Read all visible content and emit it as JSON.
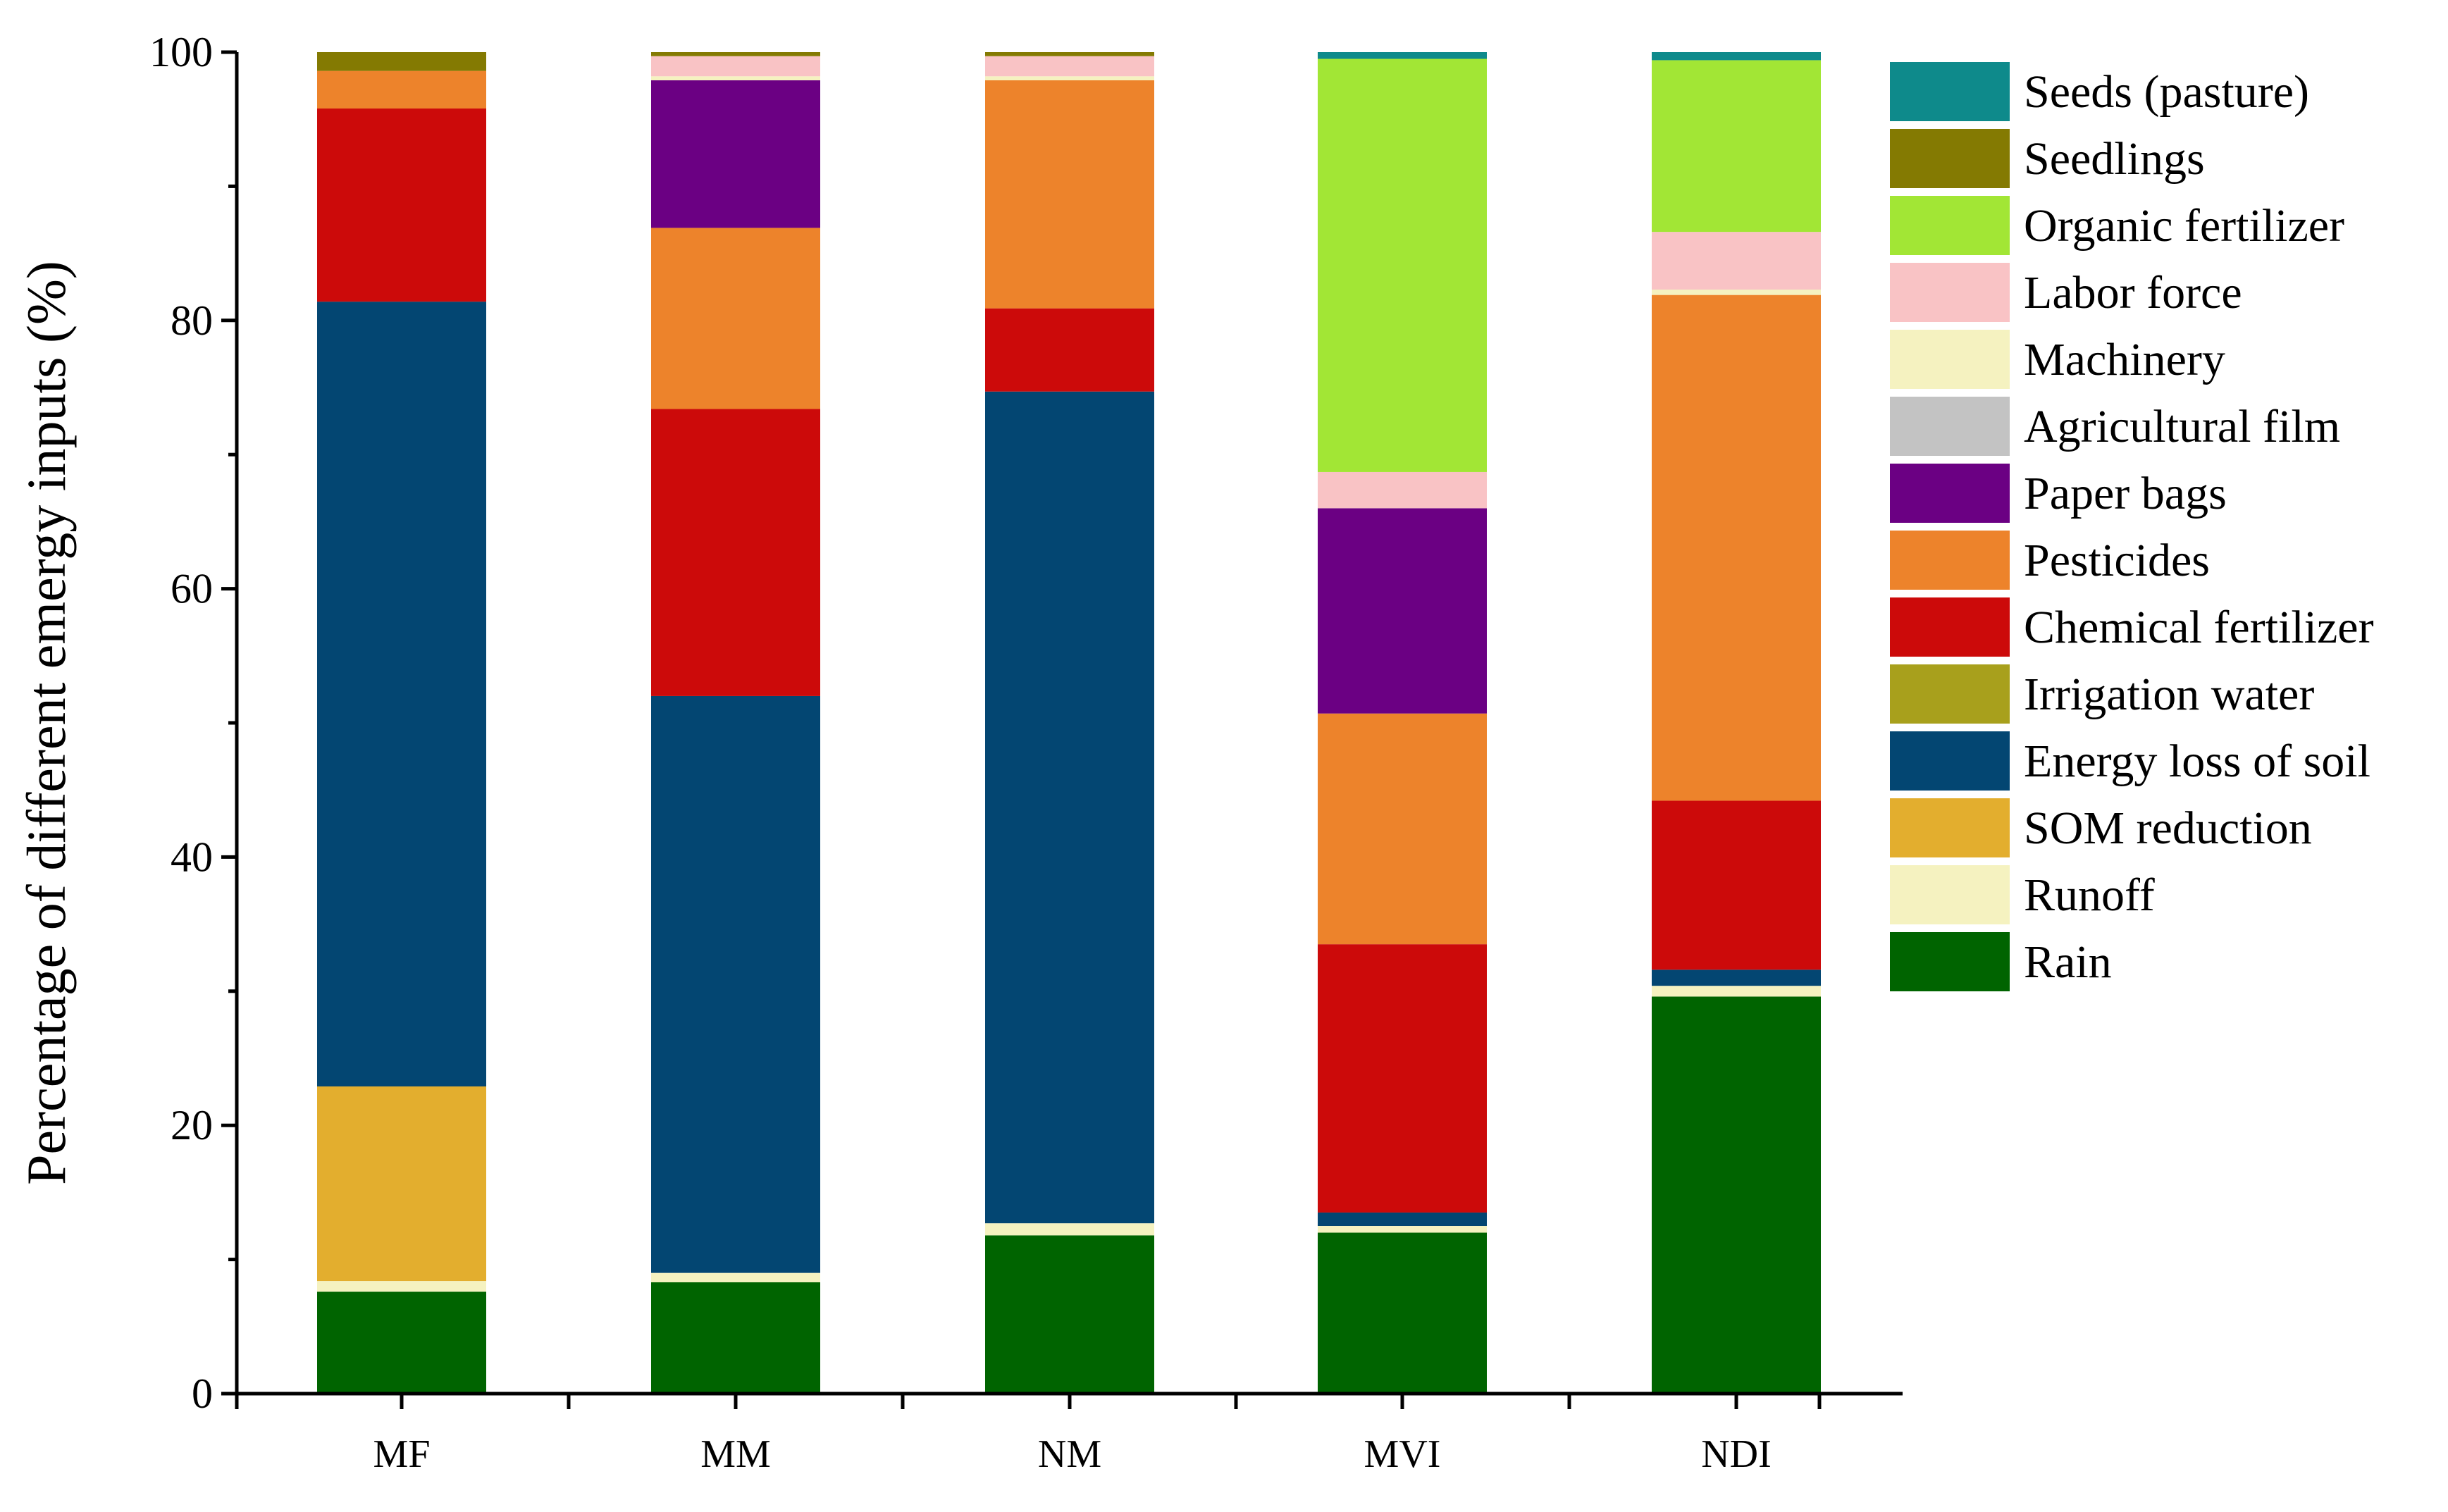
{
  "chart_data": {
    "type": "bar",
    "stacked": true,
    "title": "",
    "xlabel": "",
    "ylabel": "Percentage of different emergy inputs (%)",
    "ylim": [
      0,
      100
    ],
    "yticks": [
      0,
      20,
      40,
      60,
      80,
      100
    ],
    "ytick_labels": [
      "0",
      "20",
      "40",
      "60",
      "80",
      "100"
    ],
    "grid": false,
    "legend_position": "right",
    "categories": [
      "MF",
      "MM",
      "NM",
      "MVI",
      "NDI"
    ],
    "series": [
      {
        "name": "Rain",
        "color": "#006400",
        "values": [
          7.6,
          8.3,
          11.8,
          12.0,
          29.6
        ]
      },
      {
        "name": "Runoff",
        "color": "#F5F2C0",
        "values": [
          0.8,
          0.7,
          0.9,
          0.5,
          0.8
        ]
      },
      {
        "name": "SOM  reduction",
        "color": "#E3AE2E",
        "values": [
          14.5,
          0.0,
          0.0,
          0.0,
          0.0
        ]
      },
      {
        "name": "Energy loss of soil",
        "color": "#034672",
        "values": [
          58.5,
          43.0,
          62.0,
          1.0,
          1.2
        ]
      },
      {
        "name": "Irrigation water",
        "color": "#A8A01C",
        "values": [
          0.0,
          0.0,
          0.0,
          0.0,
          0.0
        ]
      },
      {
        "name": "Chemical fertilizer",
        "color": "#CC0A0A",
        "values": [
          14.4,
          21.4,
          6.2,
          20.0,
          12.6
        ]
      },
      {
        "name": "Pesticides",
        "color": "#ED832B",
        "values": [
          2.8,
          13.5,
          17.0,
          17.2,
          37.7
        ]
      },
      {
        "name": "Paper bags",
        "color": "#6B0083",
        "values": [
          0.0,
          11.0,
          0.0,
          15.3,
          0.0
        ]
      },
      {
        "name": "Agricultural film",
        "color": "#C3C3C3",
        "values": [
          0.0,
          0.0,
          0.0,
          0.0,
          0.0
        ]
      },
      {
        "name": "Machinery",
        "color": "#F5F2C0",
        "values": [
          0.0,
          0.3,
          0.3,
          0.0,
          0.4
        ]
      },
      {
        "name": "Labor force",
        "color": "#F9C3C5",
        "values": [
          0.0,
          1.5,
          1.5,
          2.7,
          4.3
        ]
      },
      {
        "name": "Organic fertilizer",
        "color": "#A2E635",
        "values": [
          0.0,
          0.0,
          0.0,
          30.8,
          12.8
        ]
      },
      {
        "name": "Seedlings",
        "color": "#847A02",
        "values": [
          1.4,
          0.3,
          0.3,
          0.0,
          0.0
        ]
      },
      {
        "name": "Seeds (pasture)",
        "color": "#0E8A8B",
        "values": [
          0.0,
          0.0,
          0.0,
          0.5,
          0.6
        ]
      }
    ],
    "legend_order": [
      "Seeds (pasture)",
      "Seedlings",
      "Organic fertilizer",
      "Labor force",
      "Machinery",
      "Agricultural film",
      "Paper bags",
      "Pesticides",
      "Chemical fertilizer",
      "Irrigation water",
      "Energy loss of soil",
      "SOM  reduction",
      "Runoff",
      "Rain"
    ]
  }
}
